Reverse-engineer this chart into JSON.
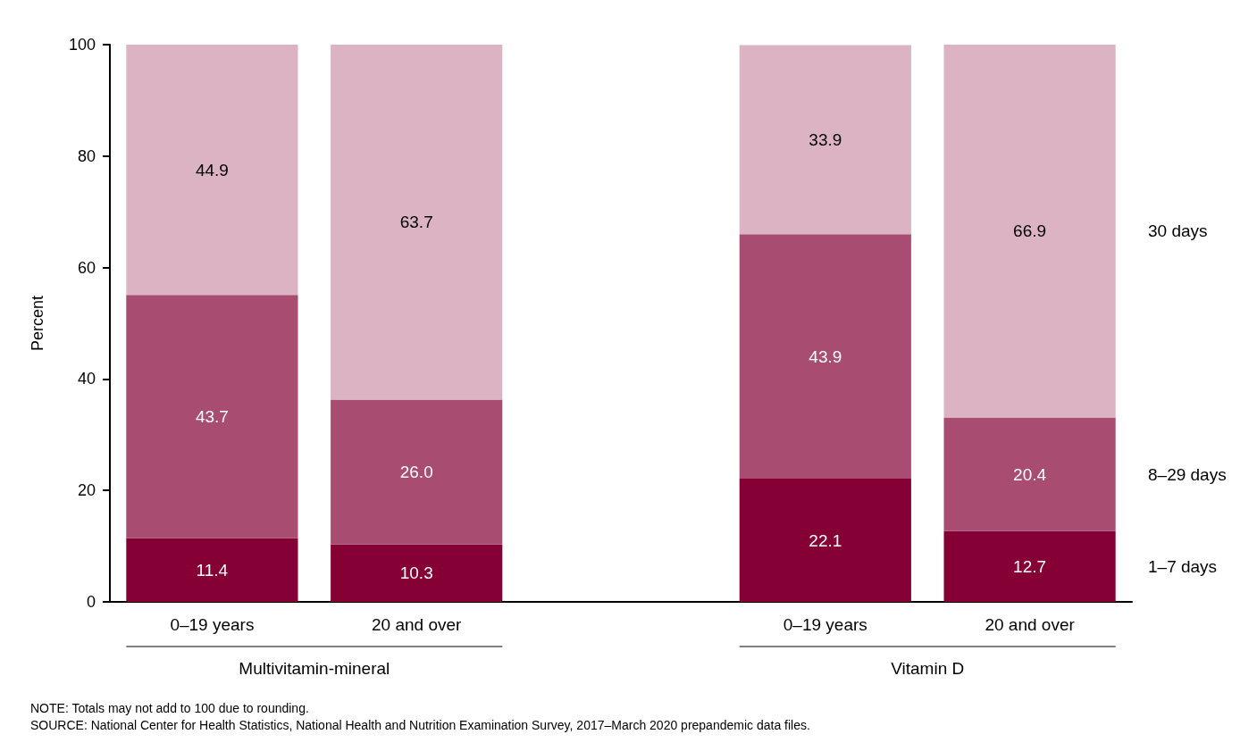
{
  "chart_data": {
    "type": "bar",
    "stacked": true,
    "ylabel": "Percent",
    "categories": [
      "0–19 years",
      "20 and over",
      null,
      "0–19 years",
      "20 and over"
    ],
    "series": [
      {
        "name": "1–7 days",
        "color": "#850035",
        "values": [
          11.4,
          10.3,
          null,
          22.1,
          12.7
        ],
        "value_labels": [
          "11.4",
          "10.3",
          null,
          "22.1",
          "12.7"
        ]
      },
      {
        "name": "8–29 days",
        "color": "#a84c72",
        "values": [
          43.7,
          26.0,
          null,
          43.9,
          20.4
        ],
        "value_labels": [
          "43.7",
          "26.0",
          null,
          "43.9",
          "20.4"
        ]
      },
      {
        "name": "30 days",
        "color": "#dcb3c3",
        "values": [
          44.9,
          63.7,
          null,
          33.9,
          66.9
        ],
        "value_labels": [
          "44.9",
          "63.7",
          null,
          "33.9",
          "66.9"
        ]
      }
    ],
    "ylim": [
      0,
      100
    ],
    "yticks": [
      0,
      20,
      40,
      60,
      80,
      100
    ],
    "grid": false,
    "legend": "right",
    "annotations": [
      "Multivitamin-mineral",
      "Vitamin D",
      "NOTE: Totals may not add to 100 due to rounding.",
      "SOURCE: National Center for Health Statistics, National Health and Nutrition Examination Survey, 2017–March 2020 prepandemic data files."
    ]
  }
}
